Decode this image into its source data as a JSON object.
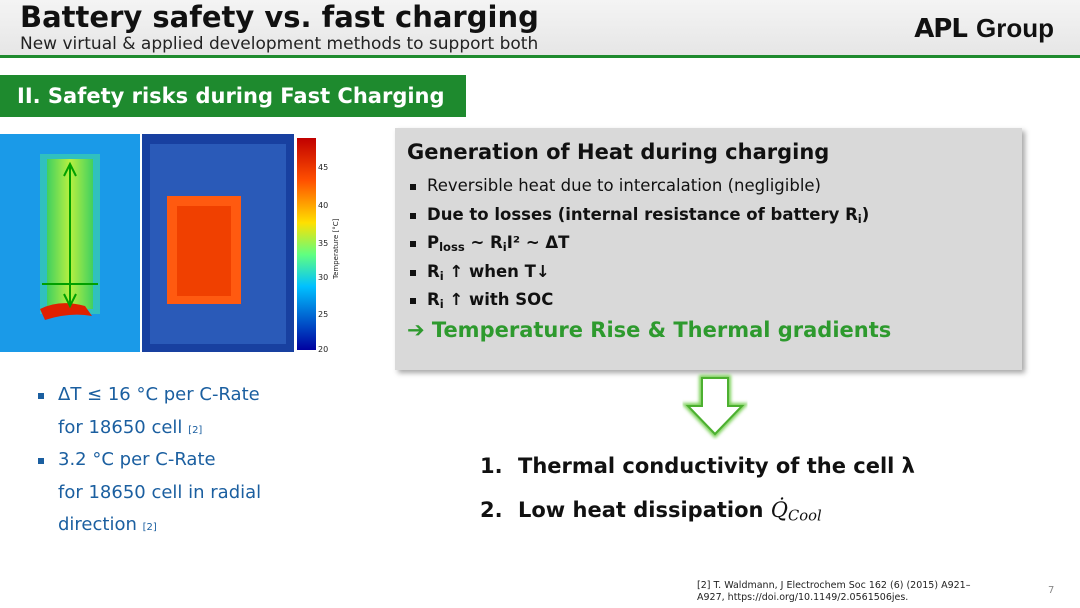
{
  "header": {
    "title": "Battery safety vs. fast charging",
    "subtitle": "New virtual & applied development methods to support both",
    "logo": {
      "mark": "APL",
      "word": "Group"
    }
  },
  "section": {
    "title": "II. Safety risks during Fast Charging"
  },
  "thermal_image": {
    "scale_label": "Temperature [°C]",
    "scale_ticks": [
      "45",
      "40",
      "35",
      "30",
      "25",
      "20"
    ]
  },
  "left_bullets": [
    {
      "lines": [
        "ΔT ≤ 16 °C per C-Rate",
        "for 18650 cell"
      ],
      "ref": "[2]"
    },
    {
      "lines": [
        "3.2 °C per C-Rate",
        "for 18650 cell in radial",
        "direction"
      ],
      "ref": "[2]"
    }
  ],
  "heat_box": {
    "title": "Generation of Heat during charging",
    "bullets": [
      [
        "Reversible heat due to intercalation (negligible)"
      ],
      [
        "Due to losses (internal resistance of battery R",
        "i",
        ")"
      ],
      [
        "P",
        "loss",
        " ~ R",
        "i",
        "I² ~ ΔT"
      ],
      [
        "R",
        "i",
        " ↑ when T↓"
      ],
      [
        "R",
        "i",
        " ↑ with SOC"
      ]
    ],
    "conclusion": "➔ Temperature Rise & Thermal gradients"
  },
  "consequences": [
    {
      "number": "1.",
      "text": "Thermal conductivity of the cell λ"
    },
    {
      "number": "2.",
      "text": "Low heat dissipation",
      "symbol": "Q̇",
      "symbol_sub": "Cool"
    }
  ],
  "footnote": [
    "[2] T. Waldmann, J Electrochem Soc 162 (6) (2015) A921–",
    "A927, https://doi.org/10.1149/2.0561506jes."
  ],
  "page_number": "7"
}
